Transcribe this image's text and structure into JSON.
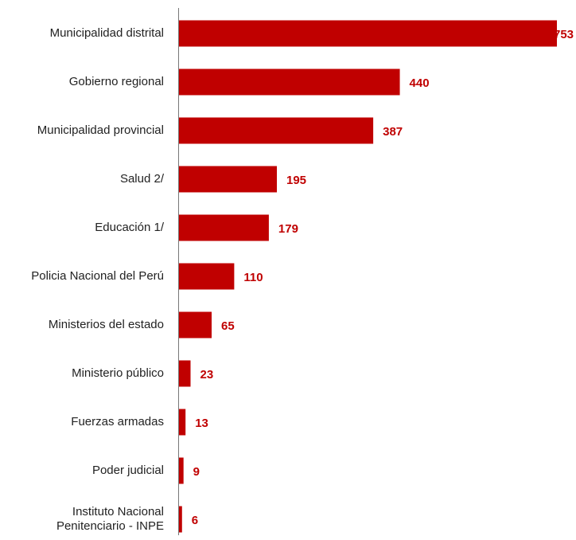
{
  "chart_data": {
    "type": "hbar",
    "categories": [
      "Municipalidad distrital",
      "Gobierno regional",
      "Municipalidad provincial",
      "Salud 2/",
      "Educación 1/",
      "Policia Nacional del Perú",
      "Ministerios del estado",
      "Ministerio público",
      "Fuerzas armadas",
      "Poder judicial",
      "Instituto Nacional\nPenitenciario - INPE"
    ],
    "values": [
      753,
      440,
      387,
      195,
      179,
      110,
      65,
      23,
      13,
      9,
      6
    ],
    "color": "#c00000",
    "xlim": [
      0,
      753
    ]
  }
}
